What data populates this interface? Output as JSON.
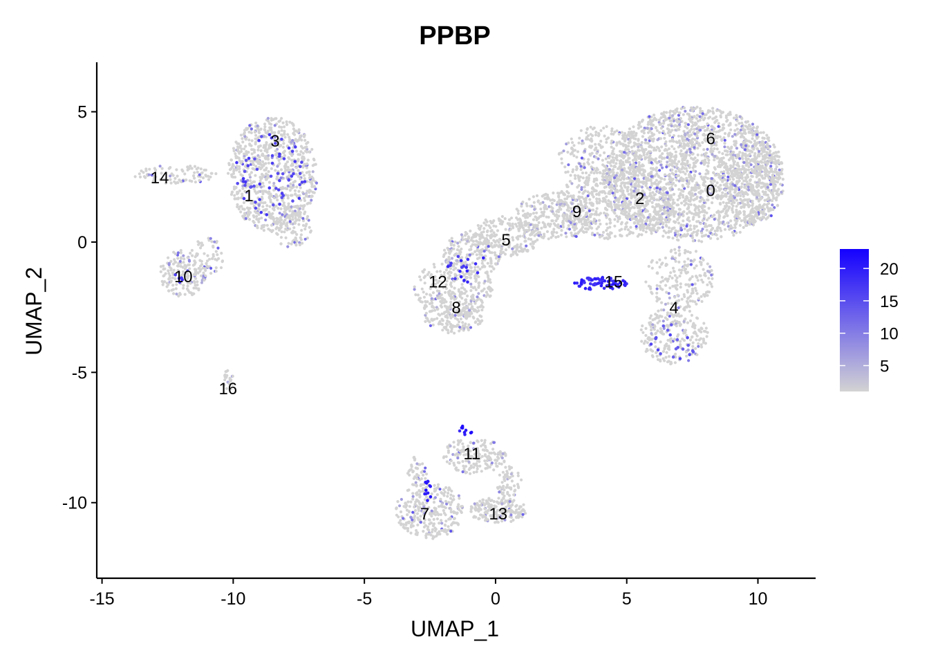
{
  "chart_data": {
    "type": "scatter",
    "title": "PPBP",
    "xlabel": "UMAP_1",
    "ylabel": "UMAP_2",
    "xlim": [
      -15.2,
      12.2
    ],
    "ylim": [
      -12.9,
      6.9
    ],
    "x_ticks": [
      -15,
      -10,
      -5,
      0,
      5,
      10
    ],
    "y_ticks": [
      5,
      0,
      -5,
      -10
    ],
    "x_tick_labels": [
      "-15",
      "-10",
      "-5",
      "0",
      "5",
      "10"
    ],
    "y_tick_labels": [
      "5",
      "0",
      "-5",
      "-10"
    ],
    "grid": false,
    "colorbar": {
      "title": "",
      "range": [
        1,
        23
      ],
      "ticks": [
        5,
        10,
        15,
        20
      ],
      "tick_labels": [
        "5",
        "10",
        "15",
        "20"
      ],
      "low_color": "#d3d3d3",
      "high_color": "#1400ff",
      "placement": "right"
    },
    "clusters": [
      {
        "label": "0",
        "x": 8.2,
        "y": 2.0
      },
      {
        "label": "1",
        "x": -9.4,
        "y": 1.8
      },
      {
        "label": "2",
        "x": 5.5,
        "y": 1.7
      },
      {
        "label": "3",
        "x": -8.4,
        "y": 3.9
      },
      {
        "label": "4",
        "x": 6.8,
        "y": -2.5
      },
      {
        "label": "5",
        "x": 0.4,
        "y": 0.1
      },
      {
        "label": "6",
        "x": 8.2,
        "y": 4.0
      },
      {
        "label": "7",
        "x": -2.7,
        "y": -10.4
      },
      {
        "label": "8",
        "x": -1.5,
        "y": -2.5
      },
      {
        "label": "9",
        "x": 3.1,
        "y": 1.2
      },
      {
        "label": "10",
        "x": -11.9,
        "y": -1.3
      },
      {
        "label": "11",
        "x": -0.9,
        "y": -8.1
      },
      {
        "label": "12",
        "x": -2.2,
        "y": -1.5
      },
      {
        "label": "13",
        "x": 0.1,
        "y": -10.4
      },
      {
        "label": "14",
        "x": -12.8,
        "y": 2.5
      },
      {
        "label": "15",
        "x": 4.5,
        "y": -1.5
      },
      {
        "label": "16",
        "x": -10.2,
        "y": -5.6
      }
    ],
    "point_regions": [
      {
        "shape": "ellipse",
        "cx": 7.6,
        "cy": 2.6,
        "rx": 3.4,
        "ry": 2.6,
        "n": 2200
      },
      {
        "shape": "ellipse",
        "cx": 9.8,
        "cy": 2.3,
        "rx": 1.2,
        "ry": 1.6,
        "n": 260
      },
      {
        "shape": "ellipse",
        "cx": 4.6,
        "cy": 1.5,
        "rx": 2.2,
        "ry": 1.4,
        "n": 520
      },
      {
        "shape": "ellipse",
        "cx": 4.2,
        "cy": 3.3,
        "rx": 1.8,
        "ry": 1.2,
        "n": 260
      },
      {
        "shape": "ellipse",
        "cx": 2.3,
        "cy": 1.0,
        "rx": 1.6,
        "ry": 0.9,
        "n": 300
      },
      {
        "shape": "ellipse",
        "cx": 0.3,
        "cy": 0.2,
        "rx": 1.4,
        "ry": 0.8,
        "n": 220
      },
      {
        "shape": "ellipse",
        "cx": -0.9,
        "cy": -0.5,
        "rx": 1.1,
        "ry": 0.9,
        "n": 180
      },
      {
        "shape": "ellipse",
        "cx": -1.6,
        "cy": -1.8,
        "rx": 1.5,
        "ry": 1.1,
        "n": 260
      },
      {
        "shape": "ellipse",
        "cx": -1.6,
        "cy": -2.7,
        "rx": 1.2,
        "ry": 0.8,
        "n": 180
      },
      {
        "shape": "ellipse",
        "cx": 7.0,
        "cy": -1.4,
        "rx": 1.3,
        "ry": 1.2,
        "n": 200
      },
      {
        "shape": "ellipse",
        "cx": 6.8,
        "cy": -3.6,
        "rx": 1.3,
        "ry": 1.1,
        "n": 230
      },
      {
        "shape": "ellipse",
        "cx": -8.5,
        "cy": 2.6,
        "rx": 1.7,
        "ry": 2.2,
        "n": 800
      },
      {
        "shape": "ellipse",
        "cx": -7.8,
        "cy": 0.6,
        "rx": 0.8,
        "ry": 0.8,
        "n": 120
      },
      {
        "shape": "ellipse",
        "cx": -12.2,
        "cy": 2.6,
        "rx": 1.6,
        "ry": 0.35,
        "n": 90
      },
      {
        "shape": "ellipse",
        "cx": -11.9,
        "cy": -1.2,
        "rx": 0.9,
        "ry": 0.9,
        "n": 160
      },
      {
        "shape": "ellipse",
        "cx": -11.0,
        "cy": -0.6,
        "rx": 0.6,
        "ry": 0.9,
        "n": 60
      },
      {
        "shape": "ellipse",
        "cx": -10.2,
        "cy": -5.3,
        "rx": 0.22,
        "ry": 0.4,
        "n": 22
      },
      {
        "shape": "ellipse",
        "cx": -0.8,
        "cy": -8.2,
        "rx": 1.2,
        "ry": 0.7,
        "n": 180
      },
      {
        "shape": "ellipse",
        "cx": -2.5,
        "cy": -10.3,
        "rx": 1.3,
        "ry": 1.1,
        "n": 300
      },
      {
        "shape": "ellipse",
        "cx": 0.1,
        "cy": -10.3,
        "rx": 1.1,
        "ry": 0.5,
        "n": 180
      },
      {
        "shape": "ellipse",
        "cx": -3.0,
        "cy": -8.8,
        "rx": 0.4,
        "ry": 0.6,
        "n": 40
      },
      {
        "shape": "ellipse",
        "cx": 0.5,
        "cy": -9.2,
        "rx": 0.5,
        "ry": 0.6,
        "n": 60
      }
    ],
    "high_expression_regions": [
      {
        "cx": 4.0,
        "cy": -1.6,
        "rx": 1.0,
        "ry": 0.25,
        "n": 70,
        "value": 21
      },
      {
        "cx": -8.6,
        "cy": 2.6,
        "rx": 1.4,
        "ry": 1.6,
        "n": 60,
        "value": 18
      },
      {
        "cx": -1.0,
        "cy": -1.0,
        "rx": 0.9,
        "ry": 0.6,
        "n": 18,
        "value": 20
      },
      {
        "cx": -1.1,
        "cy": -7.2,
        "rx": 0.3,
        "ry": 0.2,
        "n": 10,
        "value": 22
      },
      {
        "cx": -2.6,
        "cy": -9.5,
        "rx": 0.15,
        "ry": 0.5,
        "n": 12,
        "value": 22
      },
      {
        "cx": 6.8,
        "cy": -3.8,
        "rx": 0.9,
        "ry": 0.8,
        "n": 20,
        "value": 16
      },
      {
        "cx": -12.2,
        "cy": -1.4,
        "rx": 0.3,
        "ry": 0.2,
        "n": 5,
        "value": 19
      }
    ]
  }
}
